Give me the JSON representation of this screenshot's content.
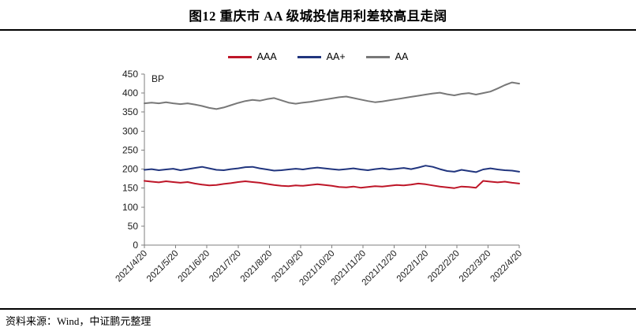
{
  "header": {
    "title": "图12  重庆市 AA 级城投信用利差较高且走阔"
  },
  "footer": {
    "source": "资料来源：Wind，中证鹏元整理"
  },
  "legend": {
    "items": [
      {
        "label": "AAA",
        "color": "#be1628"
      },
      {
        "label": "AA+",
        "color": "#21357e"
      },
      {
        "label": "AA",
        "color": "#787878"
      }
    ]
  },
  "chart_data": {
    "type": "line",
    "title": "图12  重庆市 AA 级城投信用利差较高且走阔",
    "unit_label": "BP",
    "ylabel": "BP",
    "xlabel": "",
    "ylim": [
      0,
      450
    ],
    "y_ticks": [
      0,
      50,
      100,
      150,
      200,
      250,
      300,
      350,
      400,
      450
    ],
    "x_tick_labels": [
      "2021/4/20",
      "2021/5/20",
      "2021/6/20",
      "2021/7/20",
      "2021/8/20",
      "2021/9/20",
      "2021/10/20",
      "2021/11/20",
      "2021/12/20",
      "2022/1/20",
      "2022/2/20",
      "2022/3/20",
      "2022/4/20"
    ],
    "grid": false,
    "legend_position": "top-center",
    "sampling": "weekly",
    "series": [
      {
        "name": "AA",
        "color": "#787878",
        "values": [
          373,
          375,
          373,
          376,
          373,
          371,
          373,
          370,
          366,
          361,
          358,
          362,
          368,
          374,
          379,
          382,
          380,
          384,
          387,
          381,
          375,
          372,
          375,
          377,
          380,
          383,
          386,
          389,
          391,
          387,
          383,
          379,
          376,
          378,
          381,
          384,
          387,
          390,
          393,
          396,
          399,
          401,
          397,
          394,
          398,
          400,
          396,
          400,
          404,
          412,
          421,
          428,
          425
        ]
      },
      {
        "name": "AA+",
        "color": "#21357e",
        "values": [
          198,
          200,
          197,
          199,
          201,
          197,
          200,
          203,
          206,
          202,
          198,
          197,
          200,
          202,
          205,
          206,
          202,
          199,
          196,
          197,
          199,
          201,
          199,
          202,
          204,
          202,
          200,
          198,
          200,
          202,
          199,
          197,
          200,
          202,
          199,
          201,
          203,
          200,
          204,
          209,
          206,
          200,
          195,
          193,
          198,
          195,
          192,
          199,
          202,
          199,
          197,
          196,
          193
        ]
      },
      {
        "name": "AAA",
        "color": "#be1628",
        "values": [
          169,
          167,
          165,
          168,
          166,
          164,
          166,
          162,
          159,
          157,
          158,
          161,
          163,
          166,
          168,
          166,
          164,
          161,
          158,
          156,
          155,
          157,
          156,
          158,
          160,
          158,
          156,
          153,
          152,
          154,
          151,
          153,
          155,
          154,
          156,
          158,
          157,
          159,
          162,
          160,
          157,
          154,
          152,
          150,
          154,
          153,
          151,
          169,
          167,
          165,
          167,
          164,
          162
        ]
      }
    ]
  },
  "style": {
    "axis_color": "#7f7f7f",
    "tick_text_color": "#1a1a1a",
    "rule_color": "#000000"
  }
}
